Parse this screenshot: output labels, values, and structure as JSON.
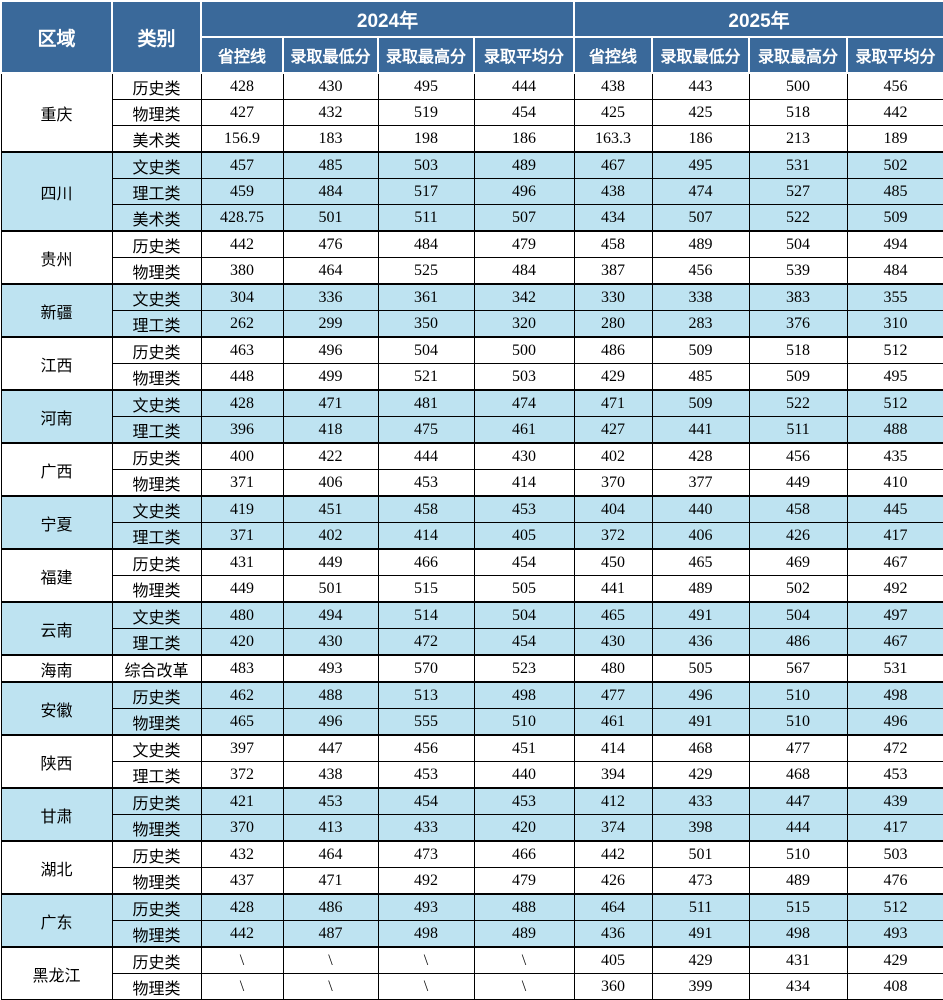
{
  "table": {
    "header": {
      "region": "区域",
      "category": "类别",
      "year_groups": [
        {
          "year": "2024年",
          "columns": [
            "省控线",
            "录取最低分",
            "录取最高分",
            "录取平均分"
          ]
        },
        {
          "year": "2025年",
          "columns": [
            "省控线",
            "录取最低分",
            "录取最高分",
            "录取平均分"
          ]
        }
      ]
    },
    "colors": {
      "header_bg": "#3a699a",
      "header_text": "#ffffff",
      "row_alt_bg": "#bee3f1",
      "row_bg": "#ffffff",
      "border": "#000000"
    },
    "regions": [
      {
        "name": "重庆",
        "highlight": false,
        "rows": [
          {
            "category": "历史类",
            "y2024": [
              "428",
              "430",
              "495",
              "444"
            ],
            "y2025": [
              "438",
              "443",
              "500",
              "456"
            ]
          },
          {
            "category": "物理类",
            "y2024": [
              "427",
              "432",
              "519",
              "454"
            ],
            "y2025": [
              "425",
              "425",
              "518",
              "442"
            ]
          },
          {
            "category": "美术类",
            "y2024": [
              "156.9",
              "183",
              "198",
              "186"
            ],
            "y2025": [
              "163.3",
              "186",
              "213",
              "189"
            ]
          }
        ]
      },
      {
        "name": "四川",
        "highlight": true,
        "rows": [
          {
            "category": "文史类",
            "y2024": [
              "457",
              "485",
              "503",
              "489"
            ],
            "y2025": [
              "467",
              "495",
              "531",
              "502"
            ]
          },
          {
            "category": "理工类",
            "y2024": [
              "459",
              "484",
              "517",
              "496"
            ],
            "y2025": [
              "438",
              "474",
              "527",
              "485"
            ]
          },
          {
            "category": "美术类",
            "y2024": [
              "428.75",
              "501",
              "511",
              "507"
            ],
            "y2025": [
              "434",
              "507",
              "522",
              "509"
            ]
          }
        ]
      },
      {
        "name": "贵州",
        "highlight": false,
        "rows": [
          {
            "category": "历史类",
            "y2024": [
              "442",
              "476",
              "484",
              "479"
            ],
            "y2025": [
              "458",
              "489",
              "504",
              "494"
            ]
          },
          {
            "category": "物理类",
            "y2024": [
              "380",
              "464",
              "525",
              "484"
            ],
            "y2025": [
              "387",
              "456",
              "539",
              "484"
            ]
          }
        ]
      },
      {
        "name": "新疆",
        "highlight": true,
        "rows": [
          {
            "category": "文史类",
            "y2024": [
              "304",
              "336",
              "361",
              "342"
            ],
            "y2025": [
              "330",
              "338",
              "383",
              "355"
            ]
          },
          {
            "category": "理工类",
            "y2024": [
              "262",
              "299",
              "350",
              "320"
            ],
            "y2025": [
              "280",
              "283",
              "376",
              "310"
            ]
          }
        ]
      },
      {
        "name": "江西",
        "highlight": false,
        "rows": [
          {
            "category": "历史类",
            "y2024": [
              "463",
              "496",
              "504",
              "500"
            ],
            "y2025": [
              "486",
              "509",
              "518",
              "512"
            ]
          },
          {
            "category": "物理类",
            "y2024": [
              "448",
              "499",
              "521",
              "503"
            ],
            "y2025": [
              "429",
              "485",
              "509",
              "495"
            ]
          }
        ]
      },
      {
        "name": "河南",
        "highlight": true,
        "rows": [
          {
            "category": "文史类",
            "y2024": [
              "428",
              "471",
              "481",
              "474"
            ],
            "y2025": [
              "471",
              "509",
              "522",
              "512"
            ]
          },
          {
            "category": "理工类",
            "y2024": [
              "396",
              "418",
              "475",
              "461"
            ],
            "y2025": [
              "427",
              "441",
              "511",
              "488"
            ]
          }
        ]
      },
      {
        "name": "广西",
        "highlight": false,
        "rows": [
          {
            "category": "历史类",
            "y2024": [
              "400",
              "422",
              "444",
              "430"
            ],
            "y2025": [
              "402",
              "428",
              "456",
              "435"
            ]
          },
          {
            "category": "物理类",
            "y2024": [
              "371",
              "406",
              "453",
              "414"
            ],
            "y2025": [
              "370",
              "377",
              "449",
              "410"
            ]
          }
        ]
      },
      {
        "name": "宁夏",
        "highlight": true,
        "rows": [
          {
            "category": "文史类",
            "y2024": [
              "419",
              "451",
              "458",
              "453"
            ],
            "y2025": [
              "404",
              "440",
              "458",
              "445"
            ]
          },
          {
            "category": "理工类",
            "y2024": [
              "371",
              "402",
              "414",
              "405"
            ],
            "y2025": [
              "372",
              "406",
              "426",
              "417"
            ]
          }
        ]
      },
      {
        "name": "福建",
        "highlight": false,
        "rows": [
          {
            "category": "历史类",
            "y2024": [
              "431",
              "449",
              "466",
              "454"
            ],
            "y2025": [
              "450",
              "465",
              "469",
              "467"
            ]
          },
          {
            "category": "物理类",
            "y2024": [
              "449",
              "501",
              "515",
              "505"
            ],
            "y2025": [
              "441",
              "489",
              "502",
              "492"
            ]
          }
        ]
      },
      {
        "name": "云南",
        "highlight": true,
        "rows": [
          {
            "category": "文史类",
            "y2024": [
              "480",
              "494",
              "514",
              "504"
            ],
            "y2025": [
              "465",
              "491",
              "504",
              "497"
            ]
          },
          {
            "category": "理工类",
            "y2024": [
              "420",
              "430",
              "472",
              "454"
            ],
            "y2025": [
              "430",
              "436",
              "486",
              "467"
            ]
          }
        ]
      },
      {
        "name": "海南",
        "highlight": false,
        "rows": [
          {
            "category": "综合改革",
            "y2024": [
              "483",
              "493",
              "570",
              "523"
            ],
            "y2025": [
              "480",
              "505",
              "567",
              "531"
            ]
          }
        ]
      },
      {
        "name": "安徽",
        "highlight": true,
        "rows": [
          {
            "category": "历史类",
            "y2024": [
              "462",
              "488",
              "513",
              "498"
            ],
            "y2025": [
              "477",
              "496",
              "510",
              "498"
            ]
          },
          {
            "category": "物理类",
            "y2024": [
              "465",
              "496",
              "555",
              "510"
            ],
            "y2025": [
              "461",
              "491",
              "510",
              "496"
            ]
          }
        ]
      },
      {
        "name": "陕西",
        "highlight": false,
        "rows": [
          {
            "category": "文史类",
            "y2024": [
              "397",
              "447",
              "456",
              "451"
            ],
            "y2025": [
              "414",
              "468",
              "477",
              "472"
            ]
          },
          {
            "category": "理工类",
            "y2024": [
              "372",
              "438",
              "453",
              "440"
            ],
            "y2025": [
              "394",
              "429",
              "468",
              "453"
            ]
          }
        ]
      },
      {
        "name": "甘肃",
        "highlight": true,
        "rows": [
          {
            "category": "历史类",
            "y2024": [
              "421",
              "453",
              "454",
              "453"
            ],
            "y2025": [
              "412",
              "433",
              "447",
              "439"
            ]
          },
          {
            "category": "物理类",
            "y2024": [
              "370",
              "413",
              "433",
              "420"
            ],
            "y2025": [
              "374",
              "398",
              "444",
              "417"
            ]
          }
        ]
      },
      {
        "name": "湖北",
        "highlight": false,
        "rows": [
          {
            "category": "历史类",
            "y2024": [
              "432",
              "464",
              "473",
              "466"
            ],
            "y2025": [
              "442",
              "501",
              "510",
              "503"
            ]
          },
          {
            "category": "物理类",
            "y2024": [
              "437",
              "471",
              "492",
              "479"
            ],
            "y2025": [
              "426",
              "473",
              "489",
              "476"
            ]
          }
        ]
      },
      {
        "name": "广东",
        "highlight": true,
        "rows": [
          {
            "category": "历史类",
            "y2024": [
              "428",
              "486",
              "493",
              "488"
            ],
            "y2025": [
              "464",
              "511",
              "515",
              "512"
            ]
          },
          {
            "category": "物理类",
            "y2024": [
              "442",
              "487",
              "498",
              "489"
            ],
            "y2025": [
              "436",
              "491",
              "498",
              "493"
            ]
          }
        ]
      },
      {
        "name": "黑龙江",
        "highlight": false,
        "rows": [
          {
            "category": "历史类",
            "y2024": [
              "\\",
              "\\",
              "\\",
              "\\"
            ],
            "y2025": [
              "405",
              "429",
              "431",
              "429"
            ]
          },
          {
            "category": "物理类",
            "y2024": [
              "\\",
              "\\",
              "\\",
              "\\"
            ],
            "y2025": [
              "360",
              "399",
              "434",
              "408"
            ]
          }
        ]
      }
    ]
  }
}
